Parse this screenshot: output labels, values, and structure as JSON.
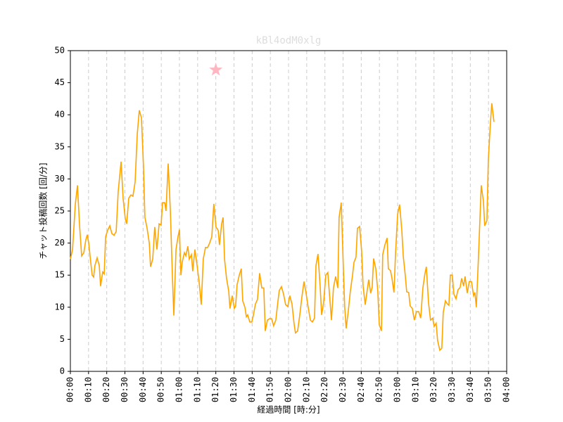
{
  "chart_data": {
    "type": "line",
    "title": "kBl4odM0xlg",
    "xlabel": "経過時間 [時:分]",
    "ylabel": "チャット投稿回数 [回/分]",
    "title_color": "#dddddd",
    "grid": true,
    "xlim": [
      0,
      240
    ],
    "ylim": [
      0,
      50
    ],
    "yticks": [
      0,
      5,
      10,
      15,
      20,
      25,
      30,
      35,
      40,
      45,
      50
    ],
    "xticks": [
      {
        "value": 0,
        "label": "00:00"
      },
      {
        "value": 10,
        "label": "00:10"
      },
      {
        "value": 20,
        "label": "00:20"
      },
      {
        "value": 30,
        "label": "00:30"
      },
      {
        "value": 40,
        "label": "00:40"
      },
      {
        "value": 50,
        "label": "00:50"
      },
      {
        "value": 60,
        "label": "01:00"
      },
      {
        "value": 70,
        "label": "01:10"
      },
      {
        "value": 80,
        "label": "01:20"
      },
      {
        "value": 90,
        "label": "01:30"
      },
      {
        "value": 100,
        "label": "01:40"
      },
      {
        "value": 110,
        "label": "01:50"
      },
      {
        "value": 120,
        "label": "02:00"
      },
      {
        "value": 130,
        "label": "02:10"
      },
      {
        "value": 140,
        "label": "02:20"
      },
      {
        "value": 150,
        "label": "02:30"
      },
      {
        "value": 160,
        "label": "02:40"
      },
      {
        "value": 170,
        "label": "02:50"
      },
      {
        "value": 180,
        "label": "03:00"
      },
      {
        "value": 190,
        "label": "03:10"
      },
      {
        "value": 200,
        "label": "03:20"
      },
      {
        "value": 210,
        "label": "03:30"
      },
      {
        "value": 220,
        "label": "03:40"
      },
      {
        "value": 230,
        "label": "03:50"
      },
      {
        "value": 240,
        "label": "04:00"
      }
    ],
    "marker": {
      "x": 80,
      "y": 47,
      "color": "#ffb6c1"
    },
    "series": [
      {
        "color": "#ffa500",
        "x": [
          0,
          1.2,
          2.7,
          3.9,
          5.0,
          6.2,
          7.4,
          8.5,
          9.3,
          10.1,
          11.2,
          12.0,
          12.8,
          13.5,
          14.7,
          15.9,
          16.6,
          17.8,
          18.6,
          19.4,
          20.5,
          21.7,
          22.8,
          24.0,
          25.2,
          26.3,
          27.9,
          29.0,
          30.2,
          31.0,
          32.1,
          33.3,
          34.4,
          35.6,
          36.8,
          37.9,
          39.1,
          40.2,
          41.0,
          42.2,
          43.4,
          44.1,
          45.3,
          46.4,
          47.6,
          48.8,
          49.9,
          50.7,
          51.9,
          52.6,
          53.8,
          55.0,
          56.1,
          56.9,
          58.1,
          59.2,
          60.0,
          60.8,
          61.5,
          62.7,
          63.5,
          64.6,
          65.4,
          66.6,
          67.3,
          68.5,
          69.7,
          70.8,
          72.0,
          73.1,
          74.3,
          75.5,
          76.6,
          77.8,
          78.9,
          80.1,
          81.3,
          82.0,
          83.2,
          84.0,
          84.8,
          85.9,
          87.1,
          87.8,
          89.0,
          90.2,
          90.9,
          91.7,
          92.9,
          94.0,
          94.8,
          96.0,
          96.8,
          97.5,
          98.7,
          99.8,
          100.6,
          101.8,
          102.9,
          104.1,
          105.3,
          106.4,
          107.2,
          108.4,
          109.5,
          110.7,
          111.8,
          113.0,
          114.2,
          114.9,
          116.1,
          117.3,
          118.4,
          119.6,
          120.7,
          121.9,
          123.1,
          123.8,
          125.0,
          126.2,
          127.3,
          128.5,
          129.6,
          130.8,
          132.0,
          133.1,
          134.3,
          135.1,
          136.2,
          137.4,
          138.2,
          139.3,
          140.5,
          141.6,
          142.8,
          143.6,
          144.7,
          145.9,
          147.1,
          147.8,
          149.0,
          150.2,
          150.9,
          151.7,
          152.9,
          154.0,
          155.2,
          156.0,
          157.1,
          157.9,
          159.1,
          160.2,
          161.0,
          162.2,
          163.3,
          164.1,
          165.2,
          166.0,
          166.8,
          168.0,
          169.1,
          169.9,
          171.1,
          171.8,
          173.0,
          174.2,
          174.9,
          176.1,
          176.9,
          178.0,
          178.8,
          180.0,
          181.1,
          182.3,
          183.1,
          184.2,
          185.0,
          186.1,
          186.9,
          188.1,
          189.2,
          190.4,
          191.6,
          192.7,
          193.9,
          195.0,
          195.8,
          197.0,
          198.1,
          199.3,
          200.1,
          201.2,
          202.0,
          203.2,
          204.3,
          205.1,
          206.3,
          207.4,
          208.2,
          209.0,
          210.1,
          210.9,
          212.1,
          213.2,
          214.4,
          215.2,
          216.3,
          217.1,
          218.3,
          219.4,
          220.6,
          221.8,
          222.5,
          223.3,
          224.5,
          226.0,
          227.2,
          227.9,
          229.1,
          229.9,
          231.0,
          231.8,
          233.0
        ],
        "values": [
          17.5,
          19,
          26,
          29,
          23,
          18,
          18.5,
          20.5,
          21.3,
          20,
          17,
          15,
          14.7,
          16.5,
          17.7,
          16.5,
          13.3,
          15.5,
          15.2,
          21,
          22,
          22.7,
          21.5,
          21.2,
          21.8,
          28,
          32.7,
          27,
          23.8,
          23,
          27,
          27.5,
          27.3,
          29.5,
          37,
          40.7,
          39.5,
          32,
          24,
          22.3,
          20,
          16.3,
          17.5,
          22.5,
          19,
          23,
          22.8,
          26.3,
          26.3,
          25,
          32.4,
          25,
          15,
          8.7,
          19,
          21,
          22.1,
          15,
          17,
          18.5,
          18,
          19.5,
          17.5,
          18.2,
          15.6,
          19,
          16.5,
          14,
          10.4,
          17.5,
          19.3,
          19.3,
          20,
          21,
          26.1,
          22.5,
          22,
          19.7,
          23,
          24,
          17.5,
          14.5,
          12.5,
          9.8,
          11.8,
          9.8,
          10.2,
          13.5,
          15,
          16,
          11,
          10,
          8.5,
          8.8,
          7.7,
          7.7,
          8.7,
          10.5,
          11.2,
          15.3,
          13,
          13,
          6.3,
          8,
          8.2,
          8.2,
          7.1,
          8,
          11,
          12.6,
          13.2,
          12,
          10.4,
          10.1,
          11.8,
          10.5,
          7.3,
          6,
          6.3,
          8.8,
          11.5,
          14,
          12.3,
          10,
          8,
          7.7,
          8.3,
          16.5,
          18.3,
          13.2,
          8.8,
          10.7,
          15,
          15.4,
          11,
          8,
          13,
          14.8,
          13,
          24,
          26.3,
          15.7,
          10,
          6.7,
          9.5,
          12.5,
          15,
          17,
          17.8,
          22.3,
          22.6,
          18.8,
          13.3,
          10.4,
          12.7,
          14.3,
          12.2,
          13.1,
          17.6,
          16,
          12.5,
          7.3,
          6.3,
          18.2,
          19.7,
          20.8,
          16,
          15.7,
          14.5,
          12.3,
          18,
          24.5,
          26,
          22,
          18,
          15,
          12.4,
          12.3,
          10.2,
          9.8,
          8,
          9.3,
          9.3,
          8.3,
          13,
          15.2,
          16.3,
          10.7,
          8,
          8.3,
          7,
          7.5,
          4.8,
          3.3,
          3.6,
          9.2,
          11,
          10.5,
          10.3,
          15,
          15,
          12.1,
          11.3,
          12.7,
          13.1,
          14.5,
          13.3,
          14.8,
          12.2,
          14,
          14,
          11.8,
          12.3,
          10,
          18,
          29,
          26.5,
          22.7,
          23.5,
          33,
          38.5,
          41.8,
          38.9
        ]
      }
    ]
  }
}
